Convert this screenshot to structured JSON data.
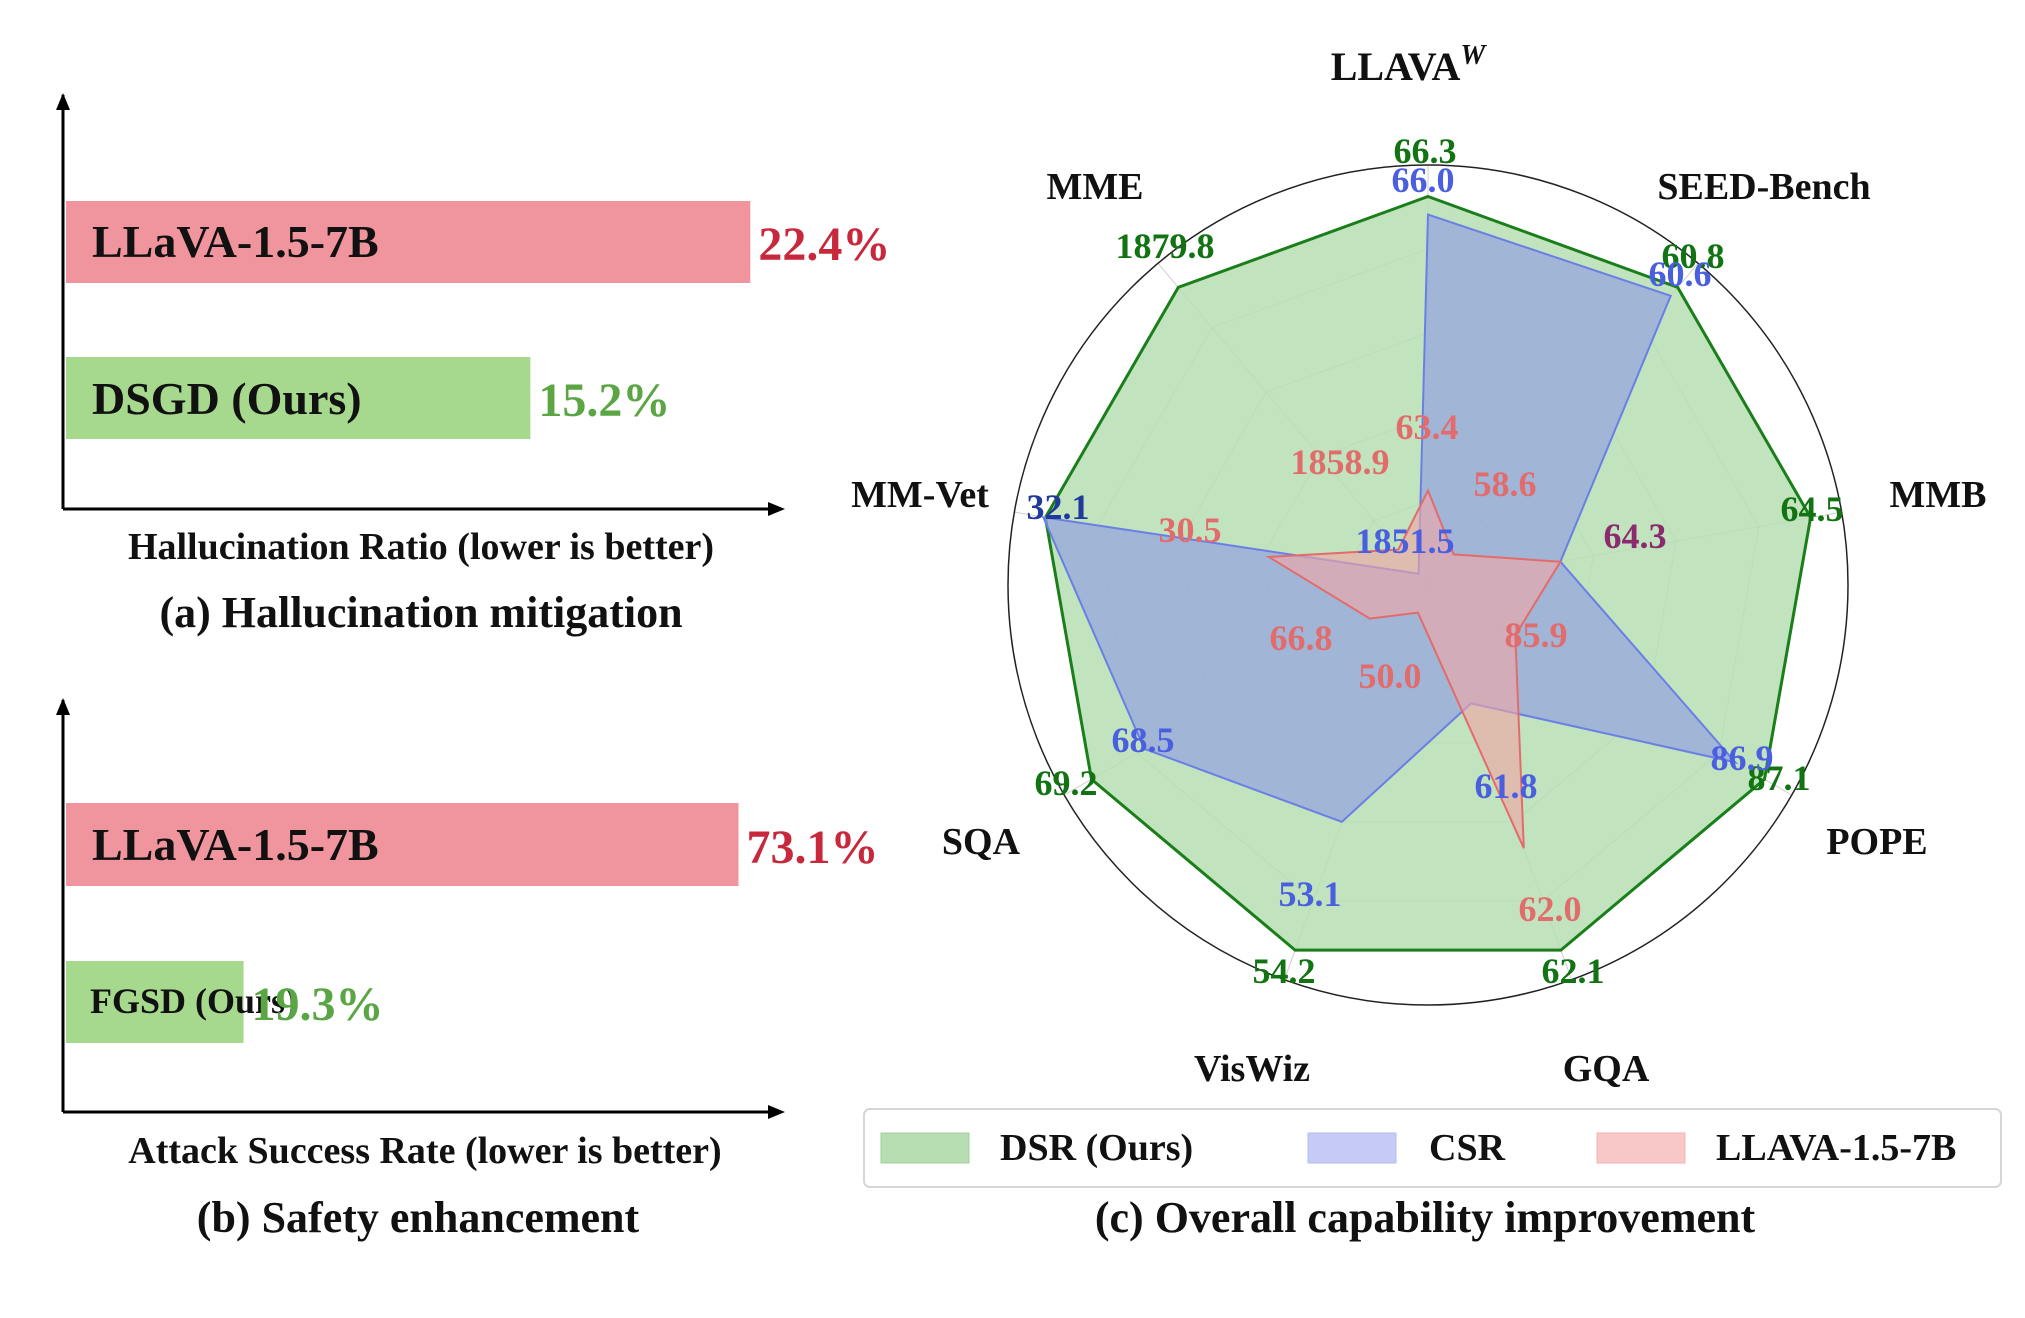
{
  "colors": {
    "red_bar": "#f0959d",
    "red_text": "#c8283c",
    "green_bar": "#a6d98d",
    "green_text": "#5aa544",
    "dsr_fill": "#b6deb2",
    "dsr_line": "#1a7f1a",
    "dsr_label": "#127312",
    "csr_fill": "#94a4df",
    "csr_line": "#6a7fe6",
    "csr_label": "#4a5ee0",
    "llava_fill": "#f0a6a6",
    "llava_label": "#e26c6c",
    "overlap_label": "#8b2a6e",
    "csr_dark_label": "#1f3a9a"
  },
  "chart_data": [
    {
      "type": "bar",
      "orientation": "horizontal",
      "categories": [
        "LLaVA-1.5-7B",
        "DSGD (Ours)"
      ],
      "values": [
        22.4,
        15.2
      ],
      "value_labels": [
        "22.4%",
        "15.2%"
      ],
      "xlabel": "Hallucination Ratio (lower is better)",
      "caption": "(a) Hallucination mitigation"
    },
    {
      "type": "bar",
      "orientation": "horizontal",
      "categories": [
        "LLaVA-1.5-7B",
        "FGSD (Ours)"
      ],
      "values": [
        73.1,
        19.3
      ],
      "value_labels": [
        "73.1%",
        "19.3%"
      ],
      "xlabel": "Attack Success Rate (lower is better)",
      "caption": "(b) Safety enhancement"
    },
    {
      "type": "radar",
      "axes": [
        {
          "name": "LLAVA",
          "sup": "W"
        },
        {
          "name": "SEED-Bench"
        },
        {
          "name": "MMB"
        },
        {
          "name": "POPE"
        },
        {
          "name": "GQA"
        },
        {
          "name": "VisWiz"
        },
        {
          "name": "SQA"
        },
        {
          "name": "MM-Vet"
        },
        {
          "name": "MME"
        }
      ],
      "series": [
        {
          "name": "DSR (Ours)",
          "values": [
            66.3,
            60.8,
            64.5,
            87.1,
            62.1,
            54.2,
            69.2,
            32.1,
            1879.8
          ],
          "labels": [
            "66.3",
            "60.8",
            "64.5",
            "87.1",
            "62.1",
            "54.2",
            "69.2",
            "32.1",
            "1879.8"
          ]
        },
        {
          "name": "CSR",
          "values": [
            66.0,
            60.6,
            64.3,
            86.9,
            61.8,
            53.1,
            68.5,
            32.1,
            1851.5
          ],
          "labels": [
            "66.0",
            "60.6",
            "64.3",
            "86.9",
            "61.8",
            "53.1",
            "68.5",
            "32.1",
            "1851.5"
          ]
        },
        {
          "name": "LLAVA-1.5-7B",
          "values": [
            63.4,
            58.6,
            64.3,
            85.9,
            62.0,
            50.0,
            66.8,
            30.5,
            1858.9
          ],
          "labels": [
            "63.4",
            "58.6",
            "64.3",
            "85.9",
            "62.0",
            "50.0",
            "66.8",
            "30.5",
            "1858.9"
          ]
        }
      ],
      "legend": [
        "DSR (Ours)",
        "CSR",
        "LLAVA-1.5-7B"
      ],
      "caption": "(c) Overall capability improvement"
    }
  ]
}
